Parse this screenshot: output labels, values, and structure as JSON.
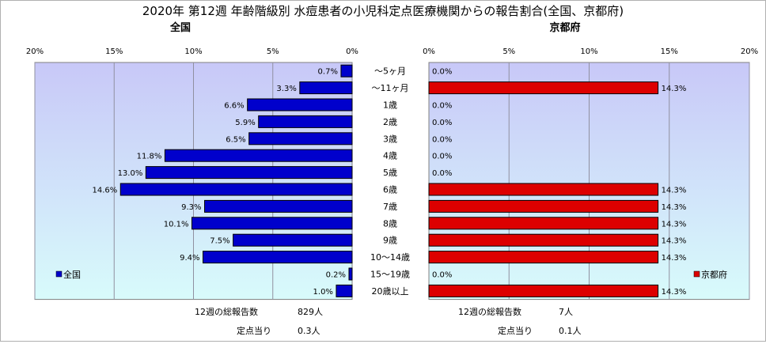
{
  "title": "2020年 第12週 年齢階級別 水痘患者の小児科定点医療機関からの報告割合(全国、京都府)",
  "colors": {
    "zenkoku": "#0000cc",
    "kyoto": "#dd0000",
    "plot_bg_top": "#c8c8f8",
    "plot_bg_bottom": "#d8fbfb"
  },
  "chart_data": [
    {
      "type": "bar",
      "orientation": "horizontal",
      "direction": "right-to-left",
      "title": "全国",
      "legend": "全国",
      "legend_position": "bottom-left",
      "xlim": [
        0,
        20
      ],
      "ticks": [
        "20%",
        "15%",
        "10%",
        "5%",
        "0%"
      ],
      "grid": true,
      "categories": [
        "～5ヶ月",
        "～11ヶ月",
        "1歳",
        "2歳",
        "3歳",
        "4歳",
        "5歳",
        "6歳",
        "7歳",
        "8歳",
        "9歳",
        "10～14歳",
        "15～19歳",
        "20歳以上"
      ],
      "series": [
        {
          "name": "全国",
          "values": [
            0.7,
            3.3,
            6.6,
            5.9,
            6.5,
            11.8,
            13.0,
            14.6,
            9.3,
            10.1,
            7.5,
            9.4,
            0.2,
            1.0
          ],
          "labels": [
            "0.7%",
            "3.3%",
            "6.6%",
            "5.9%",
            "6.5%",
            "11.8%",
            "13.0%",
            "14.6%",
            "9.3%",
            "10.1%",
            "7.5%",
            "9.4%",
            "0.2%",
            "1.0%"
          ]
        }
      ],
      "footer": {
        "total_label": "12週の総報告数",
        "total_value": "829人",
        "per_label": "定点当り",
        "per_value": "0.3人"
      }
    },
    {
      "type": "bar",
      "orientation": "horizontal",
      "direction": "left-to-right",
      "title": "京都府",
      "legend": "京都府",
      "legend_position": "bottom-right",
      "xlim": [
        0,
        20
      ],
      "ticks": [
        "0%",
        "5%",
        "10%",
        "15%",
        "20%"
      ],
      "grid": true,
      "categories": [
        "～5ヶ月",
        "～11ヶ月",
        "1歳",
        "2歳",
        "3歳",
        "4歳",
        "5歳",
        "6歳",
        "7歳",
        "8歳",
        "9歳",
        "10～14歳",
        "15～19歳",
        "20歳以上"
      ],
      "series": [
        {
          "name": "京都府",
          "values": [
            0.0,
            14.3,
            0.0,
            0.0,
            0.0,
            0.0,
            0.0,
            14.3,
            14.3,
            14.3,
            14.3,
            14.3,
            0.0,
            14.3
          ],
          "labels": [
            "0.0%",
            "14.3%",
            "0.0%",
            "0.0%",
            "0.0%",
            "0.0%",
            "0.0%",
            "14.3%",
            "14.3%",
            "14.3%",
            "14.3%",
            "14.3%",
            "0.0%",
            "14.3%"
          ]
        }
      ],
      "footer": {
        "total_label": "12週の総報告数",
        "total_value": "7人",
        "per_label": "定点当り",
        "per_value": "0.1人"
      }
    }
  ]
}
